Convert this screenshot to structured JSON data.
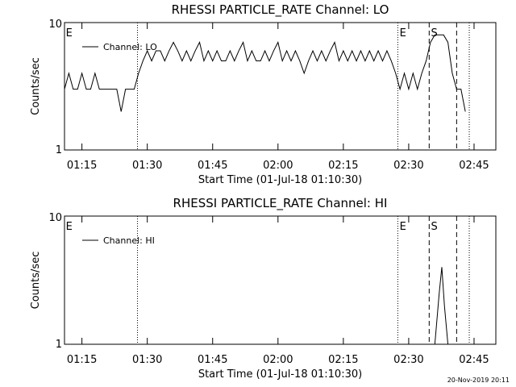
{
  "chart_data": [
    {
      "type": "line",
      "title": "RHESSI PARTICLE_RATE Channel: LO",
      "xlabel": "Start Time (01-Jul-18 01:10:30)",
      "ylabel": "Counts/sec",
      "log_y": true,
      "ylim": [
        1,
        10
      ],
      "yticks": [
        1,
        10
      ],
      "xlim": [
        71,
        170
      ],
      "xticks": [
        {
          "value": 75,
          "label": "01:15"
        },
        {
          "value": 90,
          "label": "01:30"
        },
        {
          "value": 105,
          "label": "01:45"
        },
        {
          "value": 120,
          "label": "02:00"
        },
        {
          "value": 135,
          "label": "02:15"
        },
        {
          "value": 150,
          "label": "02:30"
        },
        {
          "value": 165,
          "label": "02:45"
        }
      ],
      "legend": "upper left",
      "vlines": [
        {
          "x": 87.75,
          "style": "dotted"
        },
        {
          "x": 147.5,
          "style": "dotted"
        },
        {
          "x": 154.7,
          "style": "dashed"
        },
        {
          "x": 161,
          "style": "dashed"
        },
        {
          "x": 163.9,
          "style": "dotted"
        }
      ],
      "annotations": [
        {
          "text": "E",
          "x": 71.3
        },
        {
          "text": "E",
          "x": 147.9
        },
        {
          "text": "S",
          "x": 155.1
        }
      ],
      "series": [
        {
          "name": "Channel: LO",
          "color": "#000000",
          "x": [
            71,
            72,
            73,
            74,
            75,
            76,
            77,
            78,
            79,
            80,
            81,
            82,
            83,
            84,
            85,
            86,
            87,
            88,
            89,
            90,
            91,
            92,
            93,
            94,
            95,
            96,
            97,
            98,
            99,
            100,
            101,
            102,
            103,
            104,
            105,
            106,
            107,
            108,
            109,
            110,
            111,
            112,
            113,
            114,
            115,
            116,
            117,
            118,
            119,
            120,
            121,
            122,
            123,
            124,
            125,
            126,
            127,
            128,
            129,
            130,
            131,
            132,
            133,
            134,
            135,
            136,
            137,
            138,
            139,
            140,
            141,
            142,
            143,
            144,
            145,
            146,
            147,
            148,
            149,
            150,
            151,
            152,
            153,
            154,
            155,
            156,
            157,
            158,
            159,
            160,
            161,
            162,
            163
          ],
          "values": [
            3,
            4,
            3,
            3,
            4,
            3,
            3,
            4,
            3,
            3,
            3,
            3,
            3,
            2,
            3,
            3,
            3,
            4,
            5,
            6,
            5,
            6,
            6,
            5,
            6,
            7,
            6,
            5,
            6,
            5,
            6,
            7,
            5,
            6,
            5,
            6,
            5,
            5,
            6,
            5,
            6,
            7,
            5,
            6,
            5,
            5,
            6,
            5,
            6,
            7,
            5,
            6,
            5,
            6,
            5,
            4,
            5,
            6,
            5,
            6,
            5,
            6,
            7,
            5,
            6,
            5,
            6,
            5,
            6,
            5,
            6,
            5,
            6,
            5,
            6,
            5,
            4,
            3,
            4,
            3,
            4,
            3,
            4,
            5,
            7,
            8,
            8,
            8,
            7,
            4,
            3,
            3,
            2
          ]
        }
      ]
    },
    {
      "type": "line",
      "title": "RHESSI PARTICLE_RATE Channel: HI",
      "xlabel": "Start Time (01-Jul-18 01:10:30)",
      "ylabel": "Counts/sec",
      "log_y": true,
      "ylim": [
        1,
        10
      ],
      "yticks": [
        1,
        10
      ],
      "xlim": [
        71,
        170
      ],
      "xticks": [
        {
          "value": 75,
          "label": "01:15"
        },
        {
          "value": 90,
          "label": "01:30"
        },
        {
          "value": 105,
          "label": "01:45"
        },
        {
          "value": 120,
          "label": "02:00"
        },
        {
          "value": 135,
          "label": "02:15"
        },
        {
          "value": 150,
          "label": "02:30"
        },
        {
          "value": 165,
          "label": "02:45"
        }
      ],
      "legend": "upper left",
      "vlines": [
        {
          "x": 87.75,
          "style": "dotted"
        },
        {
          "x": 147.5,
          "style": "dotted"
        },
        {
          "x": 154.7,
          "style": "dashed"
        },
        {
          "x": 161,
          "style": "dashed"
        },
        {
          "x": 163.9,
          "style": "dotted"
        }
      ],
      "annotations": [
        {
          "text": "E",
          "x": 71.3
        },
        {
          "text": "E",
          "x": 147.9
        },
        {
          "text": "S",
          "x": 155.1
        }
      ],
      "series": [
        {
          "name": "Channel: HI",
          "color": "#000000",
          "x": [
            156,
            157,
            157.6,
            158.2,
            159
          ],
          "values": [
            1,
            2.5,
            4,
            2,
            1
          ]
        }
      ]
    }
  ],
  "footer": "20-Nov-2019 20:11"
}
